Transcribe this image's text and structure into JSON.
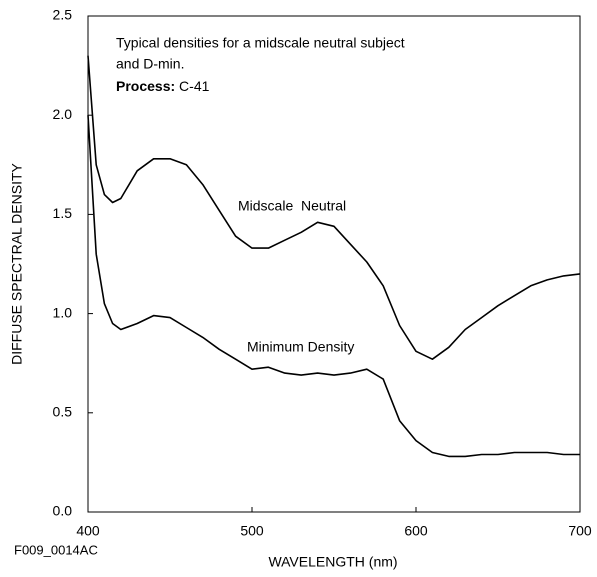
{
  "chart_data": {
    "type": "line",
    "annotation_lines": [
      "Typical densities for a midscale neutral subject",
      "and D-min."
    ],
    "process_label": "Process:",
    "process_value": "C-41",
    "xlabel": "WAVELENGTH (nm)",
    "ylabel": "DIFFUSE SPECTRAL DENSITY",
    "footer": "F009_0014AC",
    "x": [
      400,
      405,
      410,
      415,
      420,
      430,
      440,
      450,
      460,
      470,
      480,
      490,
      500,
      510,
      520,
      530,
      540,
      550,
      560,
      570,
      580,
      590,
      600,
      610,
      620,
      630,
      640,
      650,
      660,
      670,
      680,
      690,
      700
    ],
    "series": [
      {
        "name": "Midscale  Neutral",
        "color": "#000000",
        "values": [
          2.3,
          1.75,
          1.6,
          1.56,
          1.58,
          1.72,
          1.78,
          1.78,
          1.75,
          1.65,
          1.52,
          1.39,
          1.33,
          1.33,
          1.37,
          1.41,
          1.46,
          1.44,
          1.35,
          1.26,
          1.14,
          0.94,
          0.81,
          0.77,
          0.83,
          0.92,
          0.98,
          1.04,
          1.09,
          1.14,
          1.17,
          1.19,
          1.2
        ]
      },
      {
        "name": "Minimum Density",
        "color": "#000000",
        "values": [
          2.0,
          1.3,
          1.05,
          0.95,
          0.92,
          0.95,
          0.99,
          0.98,
          0.93,
          0.88,
          0.82,
          0.77,
          0.72,
          0.73,
          0.7,
          0.69,
          0.7,
          0.69,
          0.7,
          0.72,
          0.67,
          0.46,
          0.36,
          0.3,
          0.28,
          0.28,
          0.29,
          0.29,
          0.3,
          0.3,
          0.3,
          0.29,
          0.29
        ]
      }
    ],
    "xlim": [
      400,
      700
    ],
    "xticks": [
      400,
      500,
      600,
      700
    ],
    "ylim": [
      0,
      2.5
    ],
    "yticks": [
      {
        "value": 0,
        "label": "0.0"
      },
      {
        "value": 0.5,
        "label": "0.5"
      },
      {
        "value": 1,
        "label": "1.0"
      },
      {
        "value": 1.5,
        "label": "1.5"
      },
      {
        "value": 2,
        "label": "2.0"
      },
      {
        "value": 2.5,
        "label": "2.5"
      }
    ]
  }
}
